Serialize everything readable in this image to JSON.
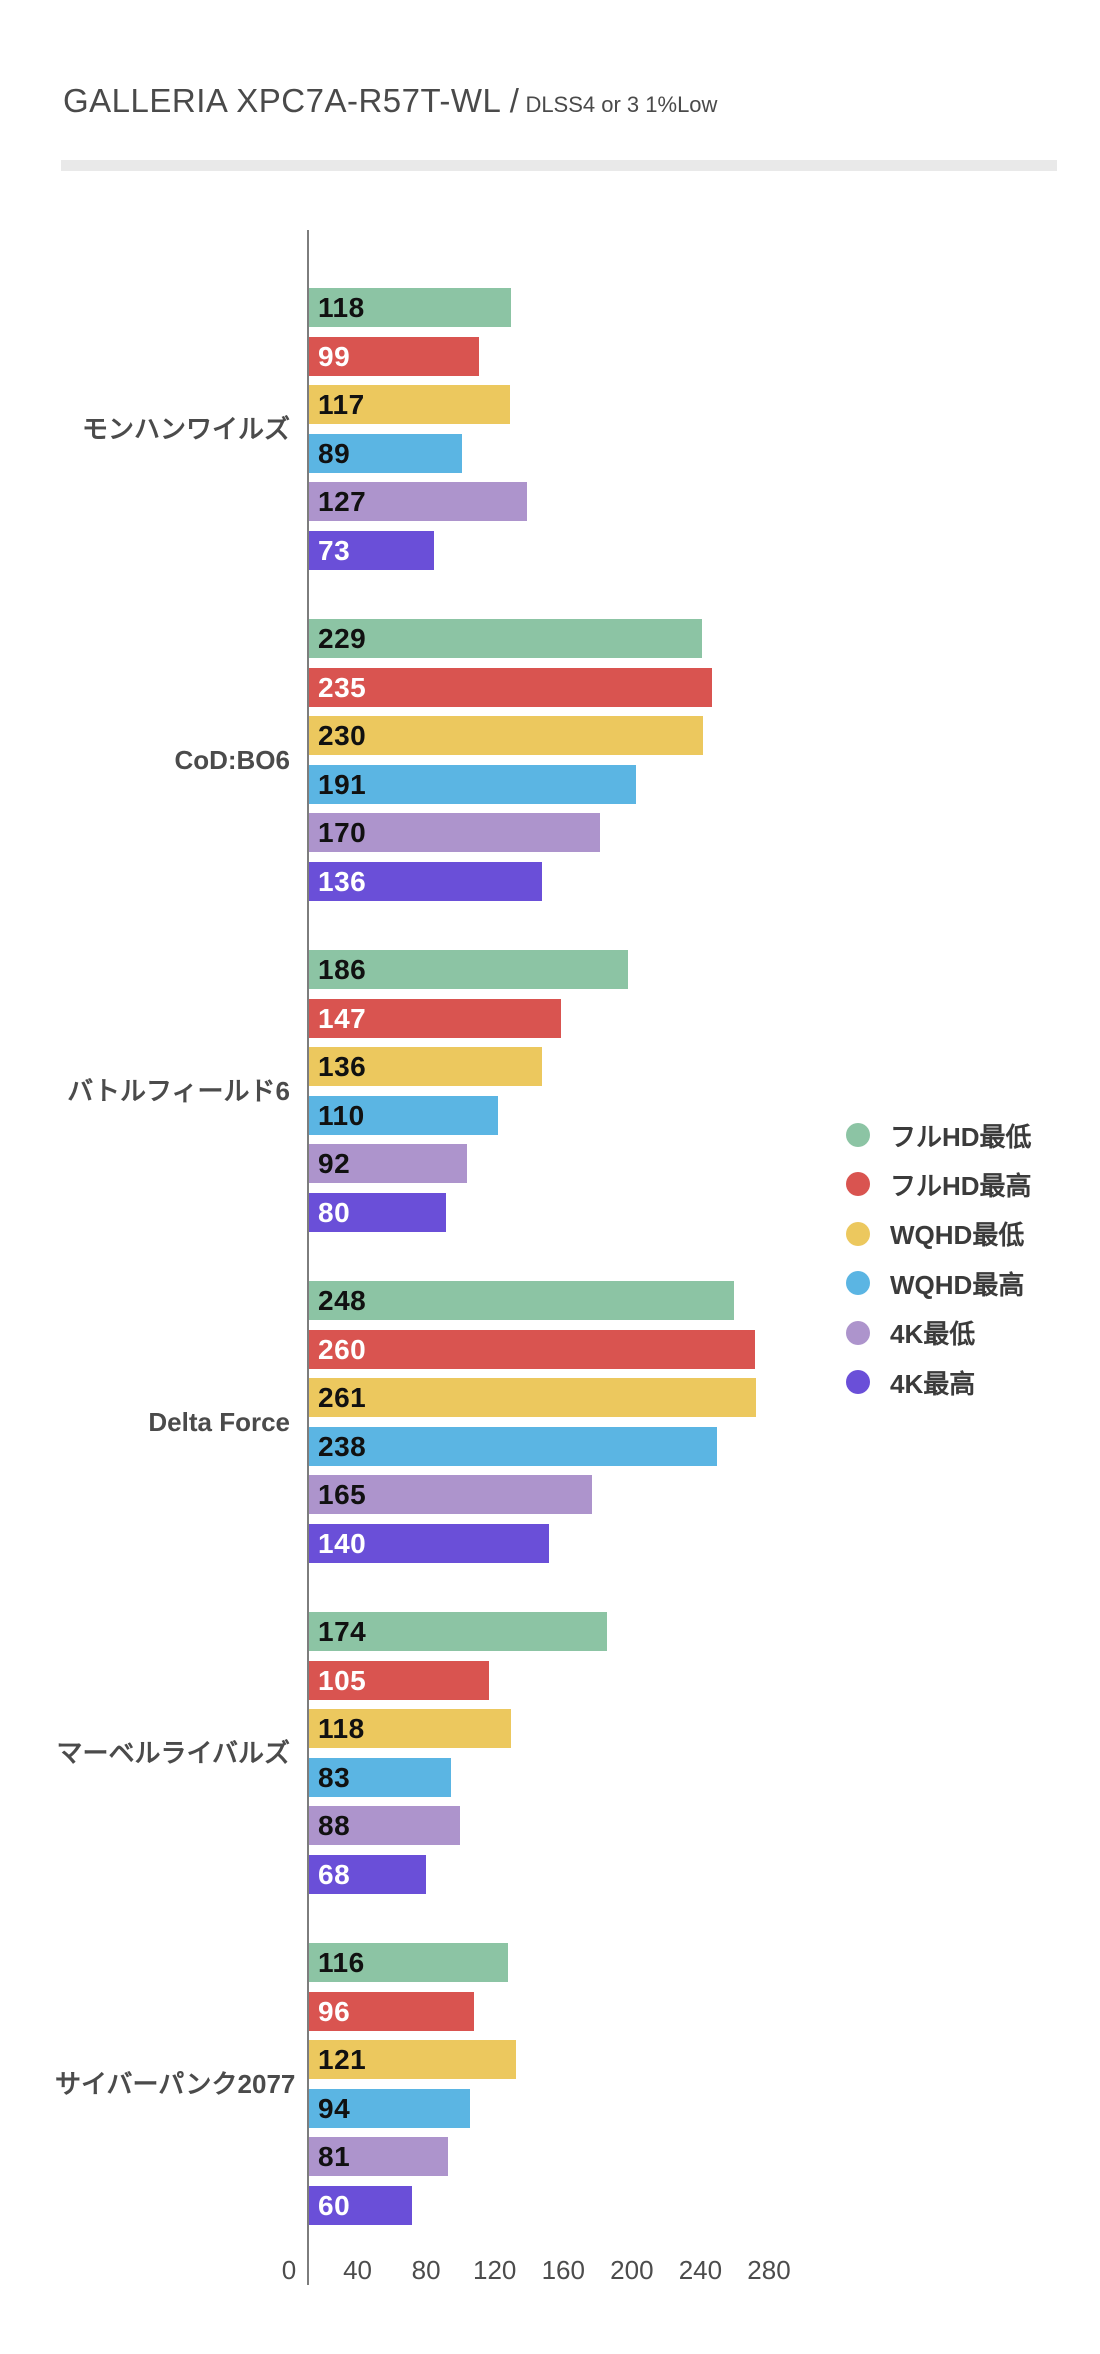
{
  "title": {
    "main": "GALLERIA XPC7A-R57T-WL /",
    "sub": "DLSS4 or 3 1%Low"
  },
  "chart_data": {
    "type": "bar",
    "orientation": "horizontal",
    "title": "GALLERIA XPC7A-R57T-WL / DLSS4 or 3 1%Low",
    "categories": [
      "モンハンワイルズ",
      "CoD:BO6",
      "バトルフィールド6",
      "Delta Force",
      "マーベルライバルズ",
      "サイバーパンク2077"
    ],
    "series": [
      {
        "name": "フルHD最低",
        "color": "#8cc4a4",
        "label_color": "#111111",
        "values": [
          118,
          229,
          186,
          248,
          174,
          116
        ]
      },
      {
        "name": "フルHD最高",
        "color": "#d95450",
        "label_color": "#ffffff",
        "values": [
          99,
          235,
          147,
          260,
          105,
          96
        ]
      },
      {
        "name": "WQHD最低",
        "color": "#ecc85e",
        "label_color": "#111111",
        "values": [
          117,
          230,
          136,
          261,
          118,
          121
        ]
      },
      {
        "name": "WQHD最高",
        "color": "#5bb5e3",
        "label_color": "#111111",
        "values": [
          89,
          191,
          110,
          238,
          83,
          94
        ]
      },
      {
        "name": "4K最低",
        "color": "#ad94cc",
        "label_color": "#111111",
        "values": [
          127,
          170,
          92,
          165,
          88,
          81
        ]
      },
      {
        "name": "4K最高",
        "color": "#6a4fd8",
        "label_color": "#ffffff",
        "values": [
          73,
          136,
          80,
          140,
          68,
          60
        ]
      }
    ],
    "x_ticks": [
      "0",
      "40",
      "80",
      "120",
      "160",
      "200",
      "240",
      "280"
    ],
    "xlim": [
      0,
      280
    ],
    "grid": false,
    "legend_position": "right-middle"
  }
}
